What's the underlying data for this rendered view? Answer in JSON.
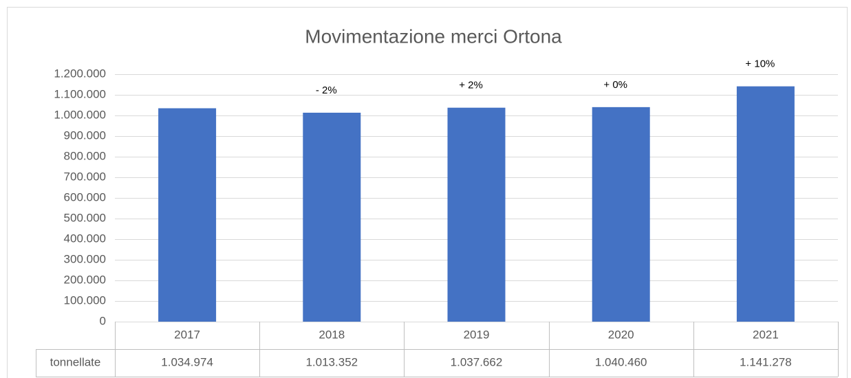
{
  "chart_data": {
    "type": "bar",
    "title": "Movimentazione merci Ortona",
    "categories": [
      "2017",
      "2018",
      "2019",
      "2020",
      "2021"
    ],
    "series": [
      {
        "name": "tonnellate",
        "color": "#4472c4",
        "values": [
          1034974,
          1013352,
          1037662,
          1040460,
          1141278
        ],
        "value_labels": [
          "1.034.974",
          "1.013.352",
          "1.037.662",
          "1.040.460",
          "1.141.278"
        ]
      }
    ],
    "annotations": [
      null,
      "- 2%",
      "+ 2%",
      "+ 0%",
      "+ 10%"
    ],
    "ylim": [
      0,
      1200000
    ],
    "yticks": [
      0,
      {
        "value": 100000,
        "label": "100.000"
      },
      {
        "value": 200000,
        "label": "200.000"
      },
      {
        "value": 300000,
        "label": "300.000"
      },
      {
        "value": 400000,
        "label": "400.000"
      },
      {
        "value": 500000,
        "label": "500.000"
      },
      {
        "value": 600000,
        "label": "600.000"
      },
      {
        "value": 700000,
        "label": "700.000"
      },
      {
        "value": 800000,
        "label": "800.000"
      },
      {
        "value": 900000,
        "label": "900.000"
      },
      {
        "value": 1000000,
        "label": "1.000.000"
      },
      {
        "value": 1100000,
        "label": "1.100.000"
      },
      {
        "value": 1200000,
        "label": "1.200.000"
      }
    ],
    "grid": true
  }
}
